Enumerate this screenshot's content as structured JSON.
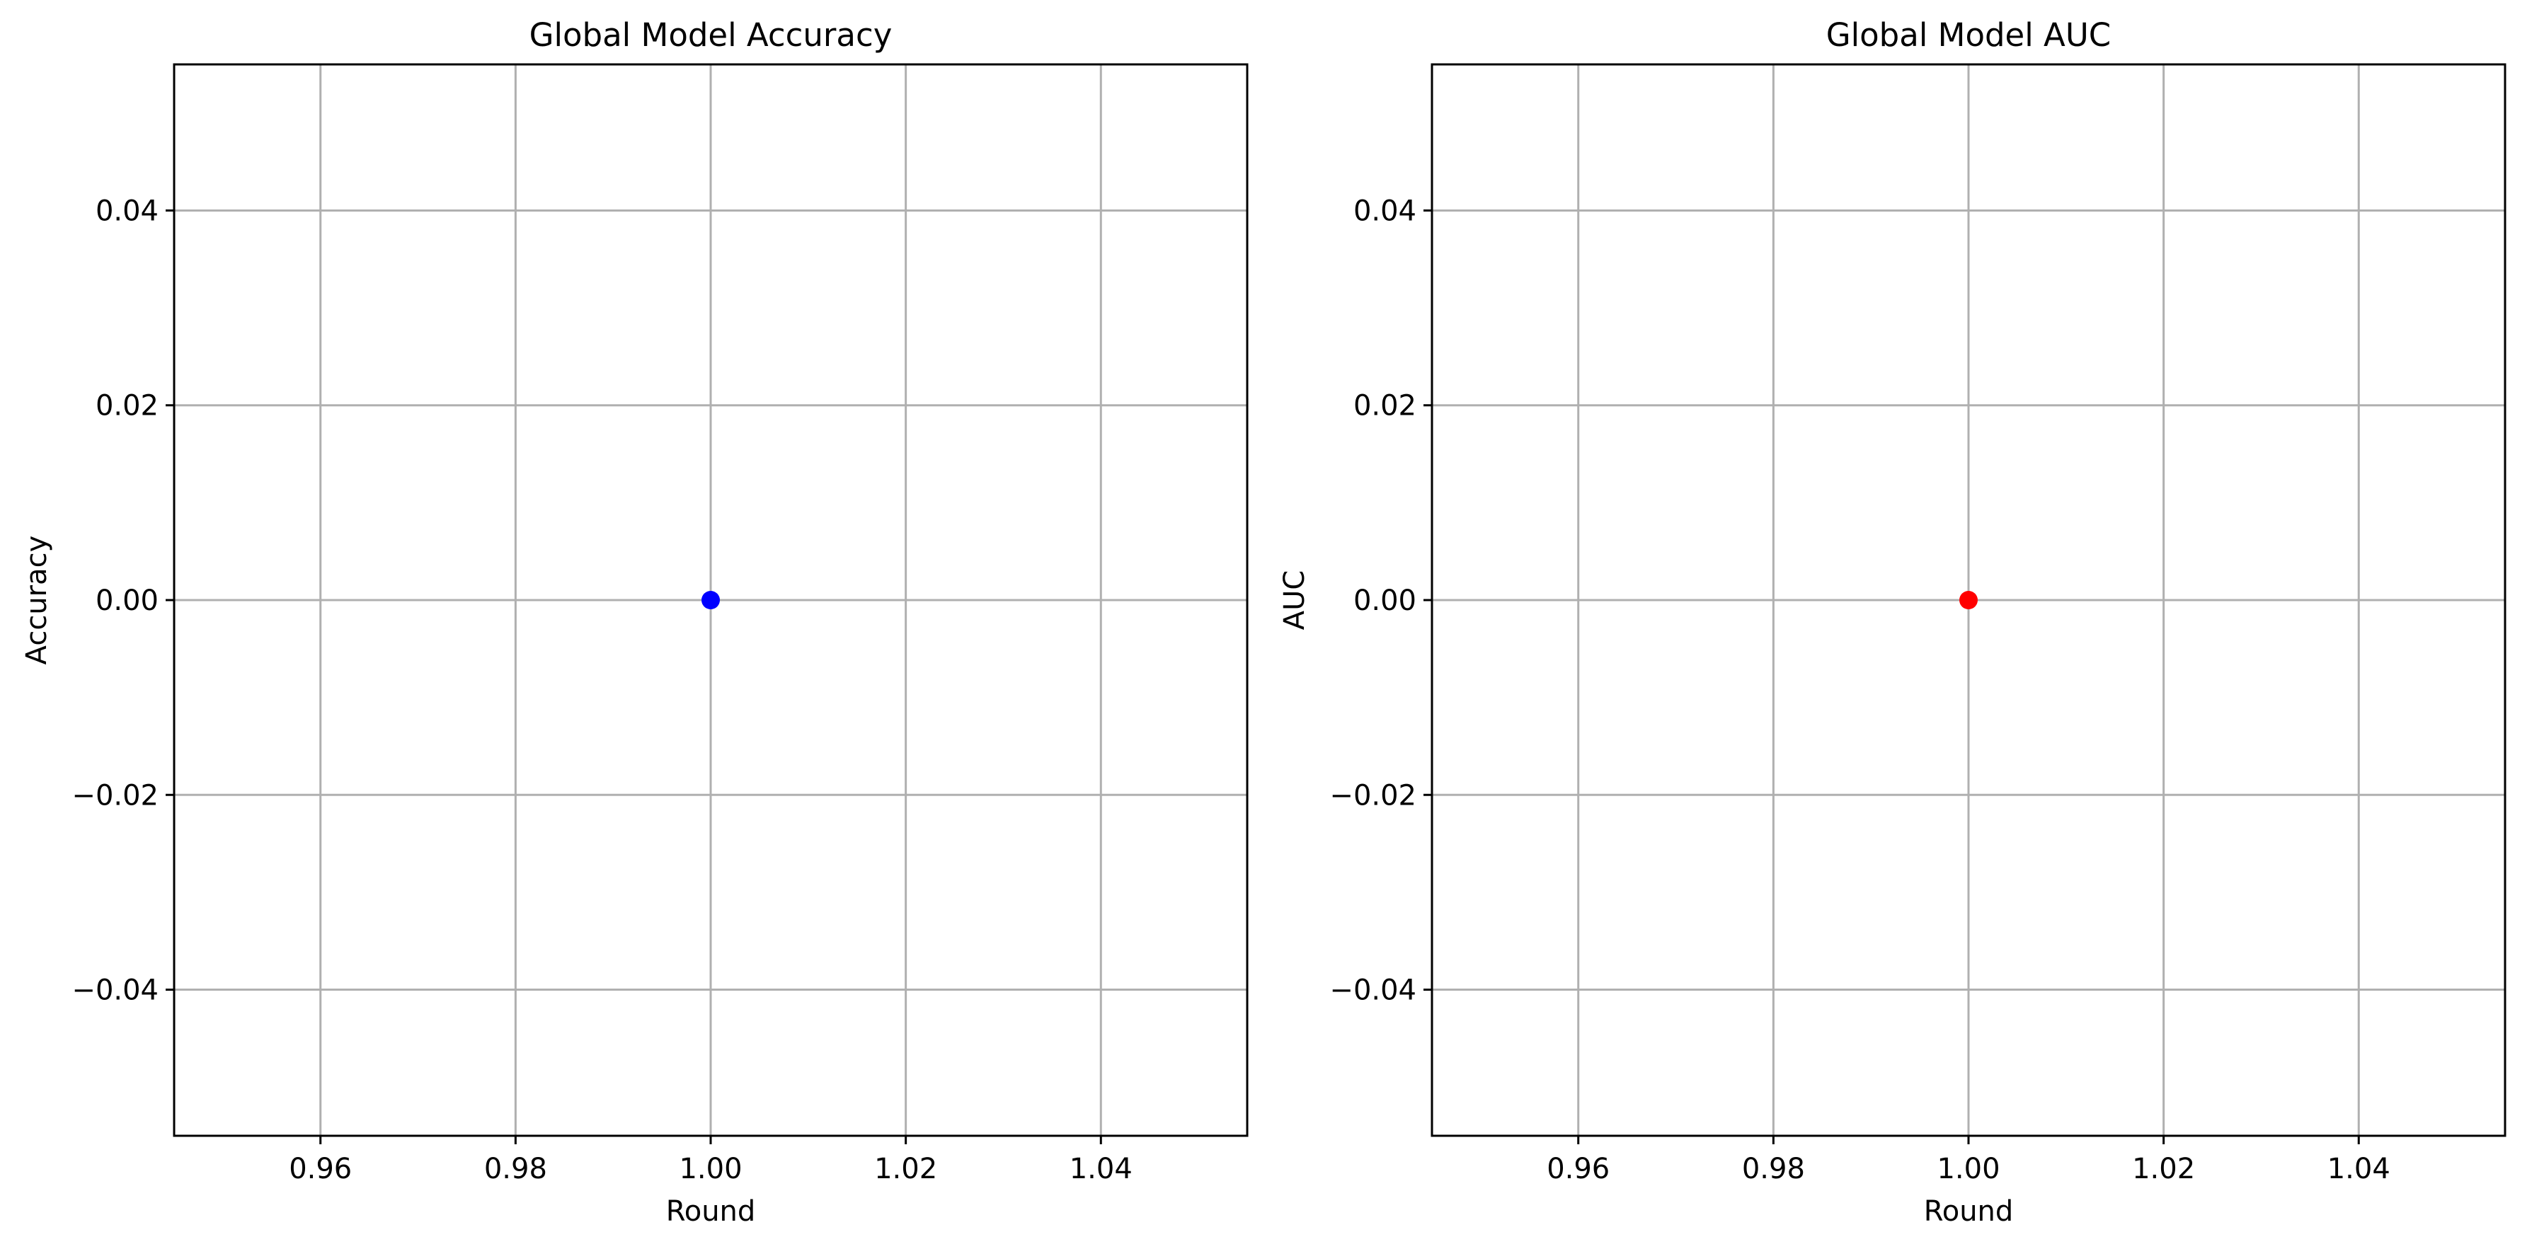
{
  "chart_data": [
    {
      "type": "scatter",
      "title": "Global Model Accuracy",
      "xlabel": "Round",
      "ylabel": "Accuracy",
      "xlim": [
        0.945,
        1.055
      ],
      "ylim": [
        -0.055,
        0.055
      ],
      "xticks": [
        0.96,
        0.98,
        1.0,
        1.02,
        1.04
      ],
      "xtick_labels": [
        "0.96",
        "0.98",
        "1.00",
        "1.02",
        "1.04"
      ],
      "yticks": [
        -0.04,
        -0.02,
        0.0,
        0.02,
        0.04
      ],
      "ytick_labels": [
        "−0.04",
        "−0.02",
        "0.00",
        "0.02",
        "0.04"
      ],
      "grid": true,
      "marker": "circle",
      "color": "#0000ff",
      "series": [
        {
          "x": [
            1.0
          ],
          "y": [
            0.0
          ]
        }
      ]
    },
    {
      "type": "scatter",
      "title": "Global Model AUC",
      "xlabel": "Round",
      "ylabel": "AUC",
      "xlim": [
        0.945,
        1.055
      ],
      "ylim": [
        -0.055,
        0.055
      ],
      "xticks": [
        0.96,
        0.98,
        1.0,
        1.02,
        1.04
      ],
      "xtick_labels": [
        "0.96",
        "0.98",
        "1.00",
        "1.02",
        "1.04"
      ],
      "yticks": [
        -0.04,
        -0.02,
        0.0,
        0.02,
        0.04
      ],
      "ytick_labels": [
        "−0.04",
        "−0.02",
        "0.00",
        "0.02",
        "0.04"
      ],
      "grid": true,
      "marker": "circle",
      "color": "#ff0000",
      "series": [
        {
          "x": [
            1.0
          ],
          "y": [
            0.0
          ]
        }
      ]
    }
  ]
}
